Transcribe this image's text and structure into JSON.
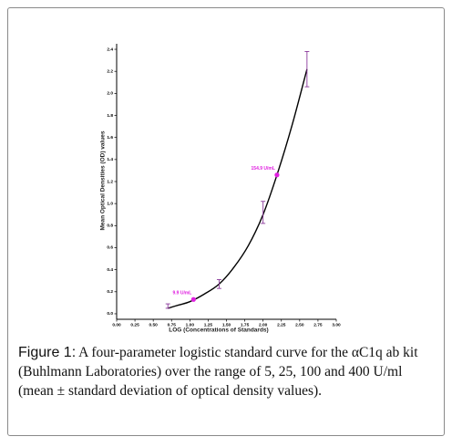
{
  "chart_data": {
    "type": "line",
    "x_label": "LOG (Concentrations of Standards)",
    "y_label": "Mean Optical Densities (OD) values",
    "xlim": [
      0,
      3
    ],
    "ylim": [
      -0.05,
      2.45
    ],
    "xticks": [
      {
        "value": 0,
        "label": "0.00"
      },
      0.25,
      {
        "value": 0.5,
        "label": "0.50"
      },
      0.75,
      {
        "value": 1,
        "label": "1.00"
      },
      1.25,
      {
        "value": 1.5,
        "label": "1.50"
      },
      1.75,
      {
        "value": 2,
        "label": "2.00"
      },
      2.25,
      {
        "value": 2.5,
        "label": "2.50"
      },
      2.75,
      {
        "value": 3,
        "label": "3.00"
      }
    ],
    "yticks": [
      {
        "value": 0,
        "label": "0.0"
      },
      0.2,
      0.4,
      0.6,
      0.8,
      {
        "value": 1,
        "label": "1.0"
      },
      1.2,
      1.4,
      1.6,
      1.8,
      {
        "value": 2,
        "label": "2.0"
      },
      2.2,
      2.4
    ],
    "curve": {
      "color": "#000000",
      "x": [
        0.7,
        0.85,
        1.0,
        1.2,
        1.4,
        1.6,
        1.8,
        2.0,
        2.2,
        2.4,
        2.6
      ],
      "y": [
        0.05,
        0.08,
        0.11,
        0.18,
        0.27,
        0.42,
        0.62,
        0.9,
        1.28,
        1.72,
        2.22
      ]
    },
    "standards": {
      "color": "#8b3a9b",
      "x": [
        0.7,
        1.4,
        2.0,
        2.6
      ],
      "y": [
        0.07,
        0.27,
        0.92,
        2.22
      ],
      "error": [
        0.02,
        0.04,
        0.1,
        0.16
      ]
    },
    "annotations": {
      "color": "#e020e0",
      "x": [
        1.05,
        2.19
      ],
      "y": [
        0.13,
        1.26
      ],
      "labels": [
        "9.9 U/mL",
        "154.9 U/mL"
      ]
    }
  },
  "caption": {
    "label": "Figure 1:",
    "text": "A four-parameter logistic standard curve for the αC1q ab kit (Buhlmann Laboratories) over the range of 5, 25, 100 and 400 U/ml (mean ± standard deviation of optical density values)."
  }
}
